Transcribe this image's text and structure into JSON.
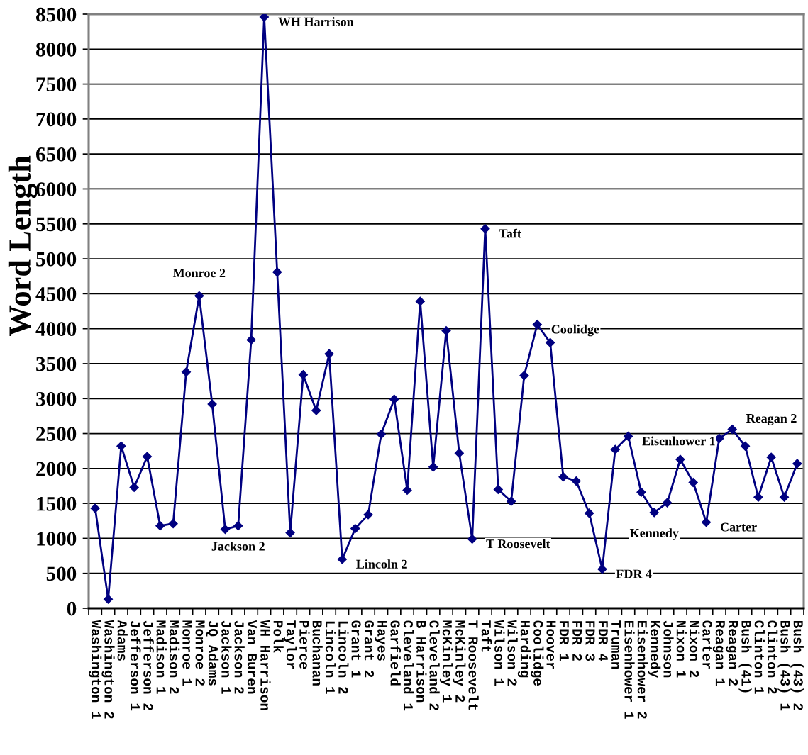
{
  "chart_data": {
    "type": "line",
    "ylabel": "Word Length",
    "categories": [
      "Washington 1",
      "Washington 2",
      "Adams",
      "Jefferson 1",
      "Jefferson 2",
      "Madison 1",
      "Madison 2",
      "Monroe 1",
      "Monroe 2",
      "JQ Adams",
      "Jackson 1",
      "Jackson 2",
      "Van Buren",
      "WH Harrison",
      "Polk",
      "Taylor",
      "Pierce",
      "Buchanan",
      "Lincoln 1",
      "Lincoln 2",
      "Grant 1",
      "Grant 2",
      "Hayes",
      "Garfield",
      "Cleveland 1",
      "B Harrison",
      "Cleveland 2",
      "McKinley 1",
      "McKinley 2",
      "T Roosevelt",
      "Taft",
      "Wilson 1",
      "Wilson 2",
      "Harding",
      "Coolidge",
      "Hoover",
      "FDR 1",
      "FDR 2",
      "FDR 3",
      "FDR 4",
      "Truman",
      "Eisenhower 1",
      "Eisenhower 2",
      "Kennedy",
      "Johnson",
      "Nixon 1",
      "Nixon 2",
      "Carter",
      "Reagan 1",
      "Reagan 2",
      "Bush (41)",
      "Clinton 1",
      "Clinton 2",
      "Bush (43) 1",
      "Bush (43) 2"
    ],
    "values": [
      1430,
      130,
      2320,
      1730,
      2170,
      1180,
      1210,
      3380,
      4470,
      2920,
      1130,
      1180,
      3840,
      8460,
      4810,
      1080,
      3340,
      2830,
      3640,
      700,
      1140,
      1340,
      2490,
      2990,
      1690,
      4390,
      2020,
      3970,
      2220,
      990,
      5430,
      1700,
      1530,
      3330,
      4060,
      3800,
      1880,
      1820,
      1360,
      560,
      2270,
      2460,
      1660,
      1370,
      1510,
      2130,
      1800,
      1230,
      2430,
      2560,
      2320,
      1590,
      2160,
      1590,
      2070
    ],
    "color": "#000080",
    "marker": "diamond",
    "line_style": "solid",
    "ylim": [
      0,
      8500
    ],
    "yticks": [
      0,
      500,
      1000,
      1500,
      2000,
      2500,
      3000,
      3500,
      4000,
      4500,
      5000,
      5500,
      6000,
      6500,
      7000,
      7500,
      8000,
      8500
    ],
    "grid": "y",
    "annotations": [
      {
        "text": "WH Harrison",
        "x": "WH Harrison",
        "y": 8460
      },
      {
        "text": "Monroe 2",
        "x": "Monroe 2",
        "y": 4470
      },
      {
        "text": "Jackson 2",
        "x": "Jackson 2",
        "y": 1180
      },
      {
        "text": "Lincoln 2",
        "x": "Lincoln 2",
        "y": 700
      },
      {
        "text": "Taft",
        "x": "Taft",
        "y": 5430
      },
      {
        "text": "T Roosevelt",
        "x": "T Roosevelt",
        "y": 990
      },
      {
        "text": "Coolidge",
        "x": "Coolidge",
        "y": 4060
      },
      {
        "text": "FDR 4",
        "x": "FDR 4",
        "y": 560
      },
      {
        "text": "Eisenhower 1",
        "x": "Eisenhower 1",
        "y": 2460
      },
      {
        "text": "Kennedy",
        "x": "Kennedy",
        "y": 1370
      },
      {
        "text": "Carter",
        "x": "Carter",
        "y": 1230
      },
      {
        "text": "Reagan 2",
        "x": "Reagan 2",
        "y": 2560
      }
    ]
  }
}
